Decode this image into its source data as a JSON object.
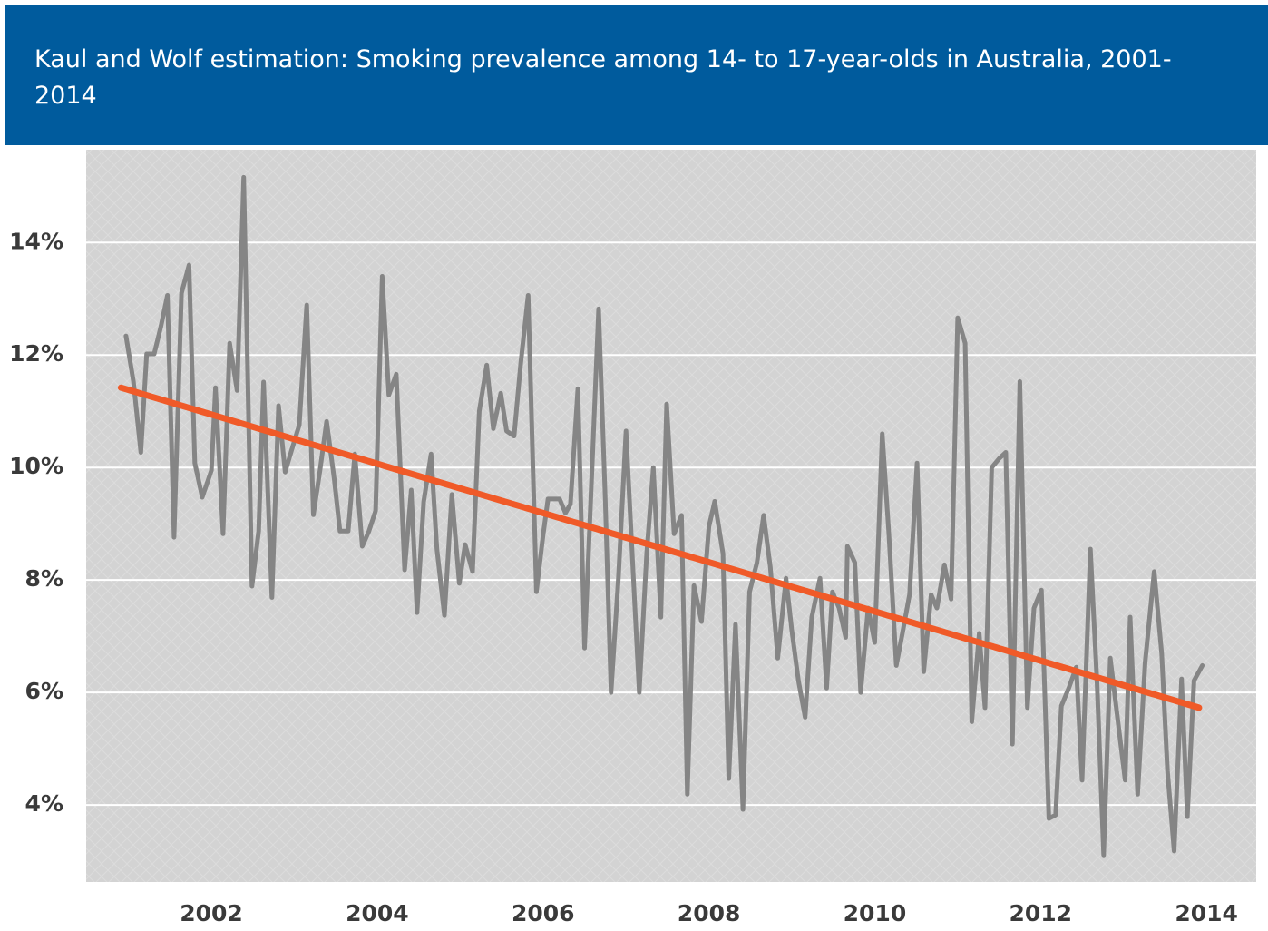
{
  "chart_data": {
    "type": "line",
    "title": "Kaul and Wolf estimation: Smoking prevalence among 14- to 17-year-olds in Australia, 2001-2014",
    "xlim": [
      2000.49,
      2014.6
    ],
    "xticks": [
      2002,
      2004,
      2006,
      2008,
      2010,
      2012,
      2014
    ],
    "ylim": [
      2.63,
      15.65
    ],
    "yticks": [
      {
        "value": 4,
        "label": "4%"
      },
      {
        "value": 6,
        "label": "6%"
      },
      {
        "value": 8,
        "label": "8%"
      },
      {
        "value": 10,
        "label": "10%"
      },
      {
        "value": 12,
        "label": "12%"
      },
      {
        "value": 14,
        "label": "14%"
      }
    ],
    "grid": true,
    "series": [
      {
        "color": "#858585",
        "x": [
          2000.97,
          2001.06,
          2001.15,
          2001.22,
          2001.31,
          2001.39,
          2001.47,
          2001.55,
          2001.64,
          2001.73,
          2001.8,
          2001.89,
          2002.0,
          2002.05,
          2002.14,
          2002.22,
          2002.31,
          2002.39,
          2002.49,
          2002.57,
          2002.63,
          2002.73,
          2002.81,
          2002.89,
          2002.97,
          2003.06,
          2003.15,
          2003.23,
          2003.31,
          2003.39,
          2003.48,
          2003.55,
          2003.65,
          2003.73,
          2003.82,
          2003.9,
          2003.98,
          2004.06,
          2004.14,
          2004.23,
          2004.33,
          2004.41,
          2004.48,
          2004.56,
          2004.65,
          2004.72,
          2004.81,
          2004.9,
          2004.99,
          2005.06,
          2005.15,
          2005.23,
          2005.32,
          2005.4,
          2005.49,
          2005.56,
          2005.65,
          2005.73,
          2005.82,
          2005.92,
          2006.0,
          2006.06,
          2006.2,
          2006.27,
          2006.33,
          2006.42,
          2006.5,
          2006.57,
          2006.67,
          2006.75,
          2006.82,
          2006.91,
          2007.0,
          2007.08,
          2007.16,
          2007.25,
          2007.33,
          2007.42,
          2007.49,
          2007.58,
          2007.67,
          2007.74,
          2007.82,
          2007.91,
          2008.0,
          2008.07,
          2008.17,
          2008.24,
          2008.32,
          2008.41,
          2008.49,
          2008.58,
          2008.66,
          2008.74,
          2008.83,
          2008.93,
          2009.0,
          2009.08,
          2009.16,
          2009.24,
          2009.34,
          2009.42,
          2009.49,
          2009.57,
          2009.65,
          2009.67,
          2009.76,
          2009.83,
          2009.92,
          2010.0,
          2010.09,
          2010.17,
          2010.26,
          2010.34,
          2010.42,
          2010.51,
          2010.59,
          2010.68,
          2010.75,
          2010.84,
          2010.92,
          2011.0,
          2011.09,
          2011.17,
          2011.26,
          2011.33,
          2011.41,
          2011.5,
          2011.58,
          2011.66,
          2011.75,
          2011.84,
          2011.92,
          2012.01,
          2012.1,
          2012.18,
          2012.25,
          2012.34,
          2012.43,
          2012.5,
          2012.6,
          2012.68,
          2012.76,
          2012.84,
          2012.94,
          2013.02,
          2013.08,
          2013.17,
          2013.26,
          2013.37,
          2013.46,
          2013.53,
          2013.61,
          2013.7,
          2013.77,
          2013.85,
          2013.95
        ],
        "values": [
          12.34,
          11.53,
          10.27,
          12.02,
          12.02,
          12.5,
          13.06,
          8.76,
          13.1,
          13.6,
          10.08,
          9.47,
          9.95,
          11.42,
          8.82,
          12.21,
          11.37,
          15.16,
          7.89,
          8.87,
          11.52,
          7.69,
          11.1,
          9.92,
          10.32,
          10.76,
          12.89,
          9.16,
          9.95,
          10.82,
          9.81,
          8.87,
          8.87,
          10.24,
          8.6,
          8.87,
          9.23,
          13.4,
          11.29,
          11.66,
          8.18,
          9.6,
          7.42,
          9.39,
          10.24,
          8.55,
          7.37,
          9.52,
          7.94,
          8.63,
          8.15,
          11.0,
          11.82,
          10.69,
          11.32,
          10.65,
          10.56,
          11.85,
          13.06,
          7.79,
          8.79,
          9.44,
          9.44,
          9.19,
          9.35,
          11.4,
          6.79,
          9.27,
          12.82,
          9.44,
          6.0,
          8.06,
          10.65,
          8.31,
          6.0,
          8.47,
          10.0,
          7.34,
          11.13,
          8.82,
          9.15,
          4.19,
          7.9,
          7.26,
          8.95,
          9.4,
          8.47,
          4.47,
          7.21,
          3.92,
          7.79,
          8.31,
          9.15,
          8.23,
          6.61,
          8.03,
          7.1,
          6.21,
          5.56,
          7.34,
          8.03,
          6.08,
          7.79,
          7.5,
          6.98,
          8.6,
          8.31,
          6.0,
          7.5,
          6.89,
          10.6,
          8.82,
          6.48,
          7.1,
          7.74,
          10.08,
          6.37,
          7.74,
          7.5,
          8.27,
          7.66,
          12.66,
          12.21,
          5.48,
          7.05,
          5.73,
          10.0,
          10.16,
          10.27,
          5.08,
          11.53,
          5.73,
          7.5,
          7.82,
          3.76,
          3.82,
          5.76,
          6.08,
          6.45,
          4.44,
          8.55,
          6.18,
          3.11,
          6.61,
          5.4,
          4.44,
          7.34,
          4.19,
          6.53,
          8.15,
          6.69,
          4.6,
          3.18,
          6.24,
          3.79,
          6.21,
          6.48
        ]
      },
      {
        "color": "#f05a28",
        "x": [
          2000.91,
          2013.91
        ],
        "values": [
          11.42,
          5.73
        ]
      }
    ]
  }
}
